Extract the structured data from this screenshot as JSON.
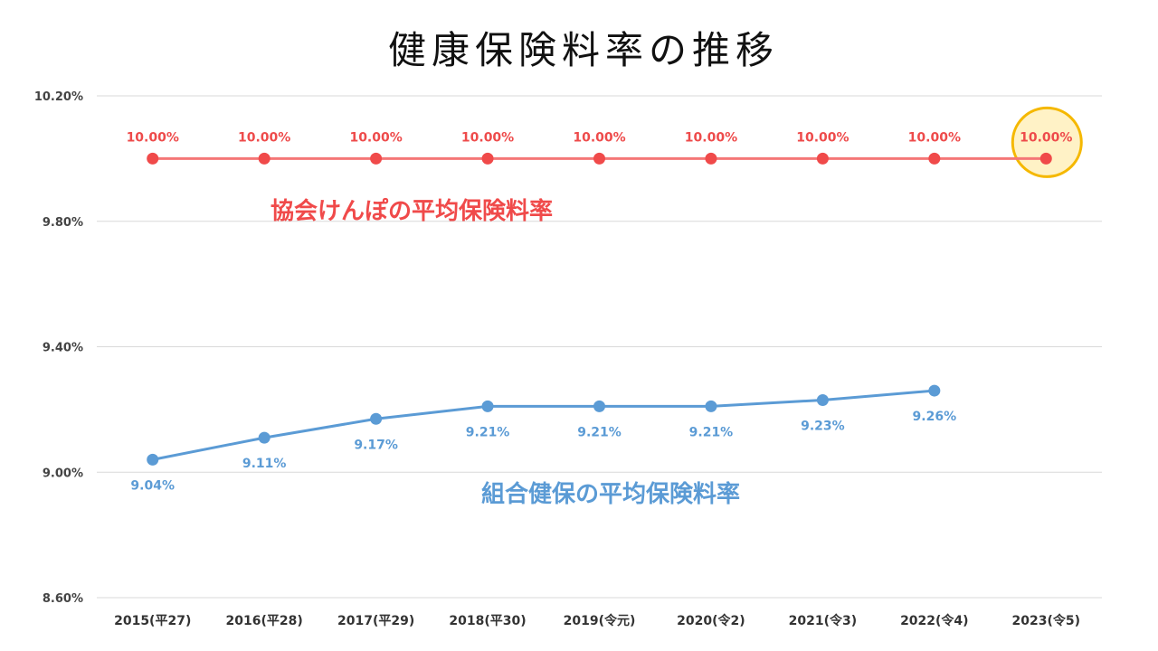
{
  "title": "健康保険料率の推移",
  "chart_data": {
    "type": "line",
    "title": "健康保険料率の推移",
    "xlabel": "",
    "ylabel": "",
    "categories": [
      "2015(平27)",
      "2016(平28)",
      "2017(平29)",
      "2018(平30)",
      "2019(令元)",
      "2020(令2)",
      "2021(令3)",
      "2022(令4)",
      "2023(令5)"
    ],
    "ylim": [
      8.6,
      10.2
    ],
    "yticks": [
      8.6,
      9.0,
      9.4,
      9.8,
      10.2
    ],
    "ytick_labels": [
      "8.60%",
      "9.00%",
      "9.40%",
      "9.80%",
      "10.20%"
    ],
    "grid": true,
    "series": [
      {
        "name": "協会けんぽの平均保険料率",
        "color": "#f47777",
        "marker_color": "#f04a4a",
        "values": [
          10.0,
          10.0,
          10.0,
          10.0,
          10.0,
          10.0,
          10.0,
          10.0,
          10.0
        ],
        "labels": [
          "10.00%",
          "10.00%",
          "10.00%",
          "10.00%",
          "10.00%",
          "10.00%",
          "10.00%",
          "10.00%",
          "10.00%"
        ]
      },
      {
        "name": "組合健保の平均保険料率",
        "color": "#5b9bd5",
        "marker_color": "#5b9bd5",
        "values": [
          9.04,
          9.11,
          9.17,
          9.21,
          9.21,
          9.21,
          9.23,
          9.26,
          null
        ],
        "labels": [
          "9.04%",
          "9.11%",
          "9.17%",
          "9.21%",
          "9.21%",
          "9.21%",
          "9.23%",
          "9.26%",
          ""
        ]
      }
    ],
    "highlight": {
      "series": 0,
      "index": 8,
      "color": "#f5b800",
      "fill": "#fff2c6"
    }
  }
}
